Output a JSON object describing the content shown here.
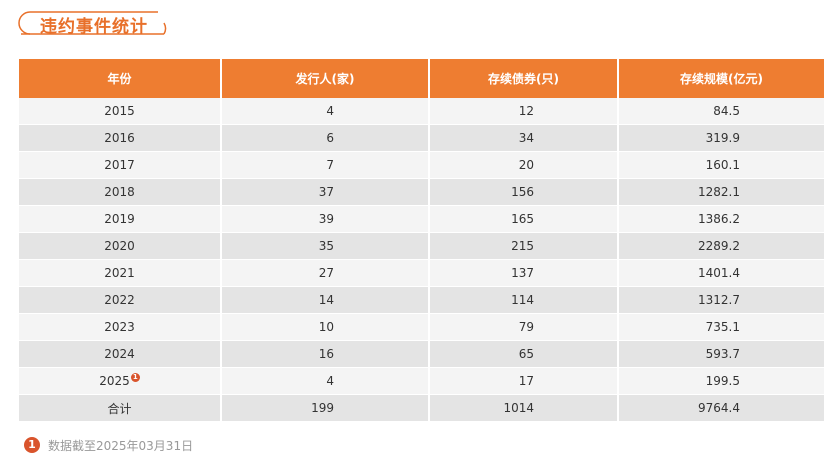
{
  "title": "违约事件统计",
  "colors": {
    "accent": "#ee7d31",
    "title_text": "#e8702a",
    "note_badge": "#d9542c",
    "row_light": "#f4f4f4",
    "row_dark": "#e4e4e4"
  },
  "table": {
    "headers": [
      "年份",
      "发行人(家)",
      "存续债券(只)",
      "存续规模(亿元)"
    ],
    "rows": [
      {
        "year": "2015",
        "issuers": "4",
        "bonds": "12",
        "scale": "84.5"
      },
      {
        "year": "2016",
        "issuers": "6",
        "bonds": "34",
        "scale": "319.9"
      },
      {
        "year": "2017",
        "issuers": "7",
        "bonds": "20",
        "scale": "160.1"
      },
      {
        "year": "2018",
        "issuers": "37",
        "bonds": "156",
        "scale": "1282.1"
      },
      {
        "year": "2019",
        "issuers": "39",
        "bonds": "165",
        "scale": "1386.2"
      },
      {
        "year": "2020",
        "issuers": "35",
        "bonds": "215",
        "scale": "2289.2"
      },
      {
        "year": "2021",
        "issuers": "27",
        "bonds": "137",
        "scale": "1401.4"
      },
      {
        "year": "2022",
        "issuers": "14",
        "bonds": "114",
        "scale": "1312.7"
      },
      {
        "year": "2023",
        "issuers": "10",
        "bonds": "79",
        "scale": "735.1"
      },
      {
        "year": "2024",
        "issuers": "16",
        "bonds": "65",
        "scale": "593.7"
      },
      {
        "year": "2025",
        "issuers": "4",
        "bonds": "17",
        "scale": "199.5",
        "note": "1"
      }
    ],
    "total": {
      "label": "合计",
      "issuers": "199",
      "bonds": "1014",
      "scale": "9764.4"
    }
  },
  "footnote": {
    "marker": "1",
    "text": "数据截至2025年03月31日"
  }
}
